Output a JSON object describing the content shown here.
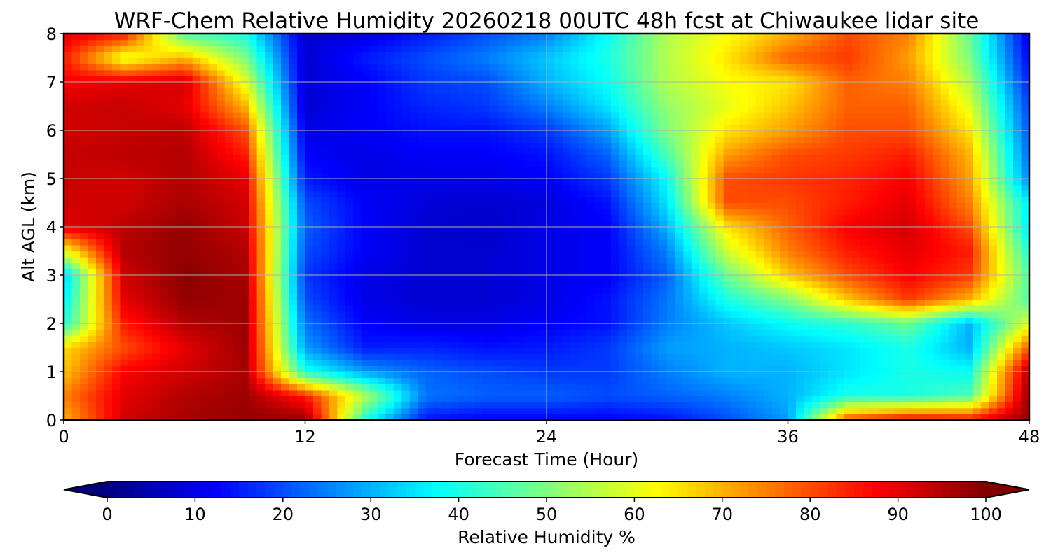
{
  "chart_data": {
    "type": "heatmap",
    "title": "WRF-Chem Relative Humidity 20260218 00UTC 48h fcst at Chiwaukee lidar site",
    "xlabel": "Forecast Time (Hour)",
    "ylabel": "Alt AGL (km)",
    "xlim": [
      0,
      48
    ],
    "ylim": [
      0,
      8
    ],
    "xticks": [
      0,
      12,
      24,
      36,
      48
    ],
    "yticks": [
      0,
      1,
      2,
      3,
      4,
      5,
      6,
      7,
      8
    ],
    "grid": true,
    "colormap": "jet",
    "colorbar": {
      "label": "Relative Humidity %",
      "range": [
        0,
        100
      ],
      "ticks": [
        0,
        10,
        20,
        30,
        40,
        50,
        60,
        70,
        80,
        90,
        100
      ],
      "extend": "both",
      "orientation": "horizontal"
    },
    "x_hours": [
      0,
      3,
      6,
      9,
      12,
      15,
      18,
      21,
      24,
      27,
      30,
      33,
      36,
      39,
      42,
      45,
      48
    ],
    "altitudes_km": [
      0,
      0.5,
      1,
      1.5,
      2,
      2.5,
      3,
      3.5,
      4,
      4.5,
      5,
      5.5,
      6,
      6.5,
      7,
      7.5,
      8
    ],
    "rh_percent": [
      [
        70,
        92,
        96,
        98,
        98,
        40,
        14,
        12,
        12,
        12,
        14,
        20,
        28,
        80,
        88,
        86,
        98
      ],
      [
        75,
        90,
        95,
        97,
        85,
        55,
        24,
        22,
        22,
        20,
        22,
        25,
        30,
        40,
        40,
        45,
        98
      ],
      [
        68,
        88,
        92,
        96,
        40,
        28,
        22,
        20,
        18,
        18,
        25,
        30,
        30,
        35,
        40,
        38,
        96
      ],
      [
        66,
        80,
        90,
        97,
        28,
        15,
        16,
        14,
        15,
        18,
        28,
        30,
        32,
        35,
        40,
        30,
        80
      ],
      [
        40,
        85,
        95,
        97,
        24,
        12,
        10,
        10,
        12,
        14,
        25,
        32,
        38,
        42,
        48,
        30,
        60
      ],
      [
        35,
        90,
        98,
        97,
        20,
        10,
        8,
        8,
        10,
        14,
        24,
        40,
        50,
        68,
        82,
        70,
        45
      ],
      [
        32,
        92,
        99,
        96,
        18,
        10,
        8,
        8,
        10,
        12,
        22,
        48,
        68,
        80,
        88,
        82,
        45
      ],
      [
        60,
        95,
        98,
        95,
        20,
        12,
        8,
        8,
        10,
        12,
        25,
        58,
        75,
        85,
        90,
        85,
        40
      ],
      [
        90,
        94,
        98,
        93,
        22,
        12,
        8,
        7,
        10,
        12,
        30,
        65,
        78,
        88,
        92,
        80,
        35
      ],
      [
        92,
        92,
        96,
        92,
        20,
        12,
        9,
        8,
        9,
        14,
        35,
        80,
        80,
        85,
        90,
        75,
        35
      ],
      [
        93,
        92,
        95,
        90,
        15,
        10,
        10,
        10,
        12,
        18,
        38,
        80,
        82,
        84,
        88,
        72,
        25
      ],
      [
        93,
        94,
        95,
        85,
        12,
        10,
        12,
        12,
        14,
        22,
        45,
        72,
        80,
        82,
        85,
        70,
        22
      ],
      [
        92,
        93,
        94,
        80,
        10,
        12,
        14,
        14,
        18,
        28,
        50,
        65,
        72,
        80,
        80,
        65,
        20
      ],
      [
        92,
        93,
        90,
        70,
        8,
        12,
        16,
        18,
        25,
        35,
        52,
        60,
        68,
        78,
        78,
        60,
        18
      ],
      [
        88,
        90,
        92,
        60,
        8,
        12,
        18,
        20,
        30,
        38,
        55,
        62,
        65,
        78,
        75,
        55,
        15
      ],
      [
        85,
        60,
        70,
        50,
        8,
        15,
        20,
        25,
        32,
        40,
        55,
        65,
        78,
        82,
        72,
        50,
        12
      ],
      [
        90,
        85,
        45,
        40,
        8,
        10,
        15,
        20,
        25,
        38,
        55,
        62,
        70,
        80,
        75,
        48,
        10
      ]
    ]
  }
}
